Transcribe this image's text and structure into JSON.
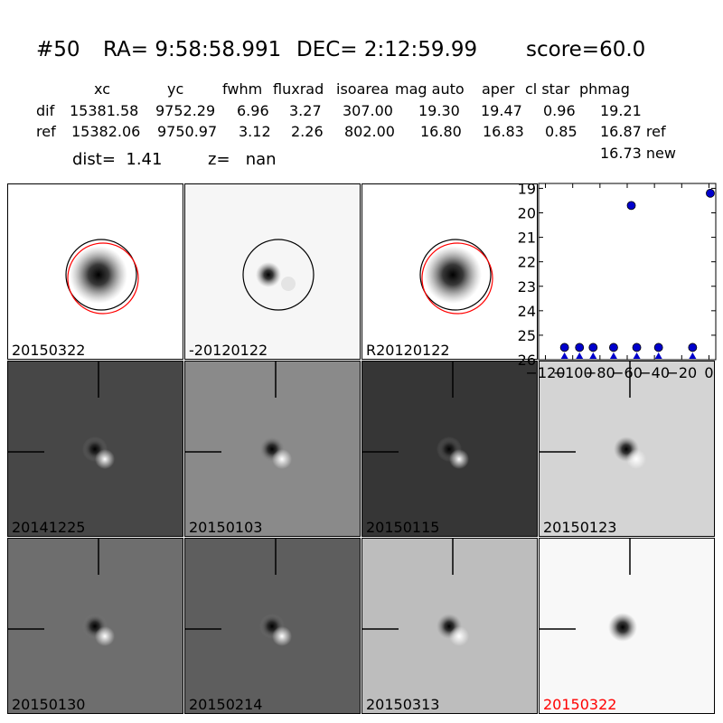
{
  "header": {
    "id": "#50",
    "ra": "RA= 9:58:58.991",
    "dec": "DEC= 2:12:59.99",
    "score": "score=60.0"
  },
  "table": {
    "columns": [
      "xc",
      "yc",
      "fwhm",
      "fluxrad",
      "isoarea",
      "mag auto",
      "aper",
      "cl star",
      "phmag"
    ],
    "rows": [
      {
        "label": "dif",
        "values": [
          "15381.58",
          "9752.29",
          "6.96",
          "3.27",
          "307.00",
          "19.30",
          "19.47",
          "0.96",
          "19.21"
        ]
      },
      {
        "label": "ref",
        "values": [
          "15382.06",
          "9750.97",
          "3.12",
          "2.26",
          "802.00",
          "16.80",
          "16.83",
          "0.85",
          "16.87 ref"
        ]
      }
    ],
    "extra_phmag": "16.73 new"
  },
  "dist_line": {
    "dist": "dist=  1.41",
    "z": "z=   nan"
  },
  "panels": [
    {
      "label": "20150322",
      "bg": "#ffffff",
      "kind": "star",
      "circle_black": true,
      "circle_red": true,
      "crosshair": false,
      "label_color": "#000000"
    },
    {
      "label": "-20120122",
      "bg": "#f6f6f6",
      "kind": "small",
      "circle_black": true,
      "circle_red": false,
      "crosshair": false,
      "label_color": "#000000"
    },
    {
      "label": "R20120122",
      "bg": "#ffffff",
      "kind": "star",
      "circle_black": true,
      "circle_red": true,
      "crosshair": false,
      "label_color": "#000000"
    },
    {
      "label": "20141225",
      "bg": "#474747",
      "kind": "dipole",
      "circle_black": false,
      "circle_red": false,
      "crosshair": true,
      "label_color": "#000000"
    },
    {
      "label": "20150103",
      "bg": "#8a8a8a",
      "kind": "dipole",
      "circle_black": false,
      "circle_red": false,
      "crosshair": true,
      "label_color": "#000000"
    },
    {
      "label": "20150115",
      "bg": "#363636",
      "kind": "dipole",
      "circle_black": false,
      "circle_red": false,
      "crosshair": true,
      "label_color": "#000000"
    },
    {
      "label": "20150123",
      "bg": "#d4d4d4",
      "kind": "dipole",
      "circle_black": false,
      "circle_red": false,
      "crosshair": true,
      "label_color": "#000000"
    },
    {
      "label": "20150130",
      "bg": "#6e6e6e",
      "kind": "dipole",
      "circle_black": false,
      "circle_red": false,
      "crosshair": true,
      "label_color": "#000000"
    },
    {
      "label": "20150214",
      "bg": "#5e5e5e",
      "kind": "dipole",
      "circle_black": false,
      "circle_red": false,
      "crosshair": true,
      "label_color": "#000000"
    },
    {
      "label": "20150313",
      "bg": "#bdbdbd",
      "kind": "dipole",
      "circle_black": false,
      "circle_red": false,
      "crosshair": true,
      "label_color": "#000000"
    },
    {
      "label": "20150322",
      "bg": "#f8f8f8",
      "kind": "star_cross",
      "circle_black": false,
      "circle_red": false,
      "crosshair": true,
      "label_color": "#ff0000"
    }
  ],
  "chart_data": {
    "type": "scatter",
    "x": [
      -106,
      -95,
      -85,
      -70,
      -57,
      -53,
      -37,
      -12,
      1
    ],
    "y": [
      25.5,
      25.5,
      25.5,
      25.5,
      19.7,
      25.5,
      25.5,
      25.5,
      19.2
    ],
    "upper_limit_points_x": [
      -106,
      -95,
      -85,
      -70,
      -53,
      -37,
      -12
    ],
    "xlim": [
      -125,
      5
    ],
    "ylim": [
      26,
      18.8
    ],
    "xticks": [
      "-120",
      "-100",
      "-80",
      "-60",
      "-40",
      "-20",
      "0"
    ],
    "yticks": [
      "19",
      "20",
      "21",
      "22",
      "23",
      "24",
      "25",
      "26"
    ],
    "marker_color": "#0000cc",
    "y_inverted": true
  }
}
